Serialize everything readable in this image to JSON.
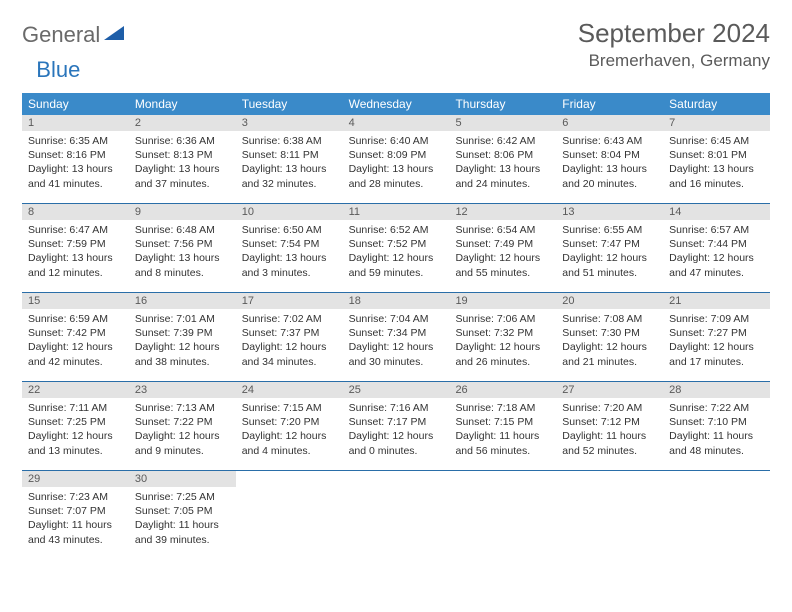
{
  "logo": {
    "general": "General",
    "blue": "Blue"
  },
  "title": "September 2024",
  "location": "Bremerhaven, Germany",
  "header_bg": "#3a8ac9",
  "daynum_bg": "#e3e3e3",
  "border_color": "#2a6ea8",
  "day_headers": [
    "Sunday",
    "Monday",
    "Tuesday",
    "Wednesday",
    "Thursday",
    "Friday",
    "Saturday"
  ],
  "weeks": [
    [
      {
        "day": "1",
        "sunrise": "Sunrise: 6:35 AM",
        "sunset": "Sunset: 8:16 PM",
        "dl1": "Daylight: 13 hours",
        "dl2": "and 41 minutes."
      },
      {
        "day": "2",
        "sunrise": "Sunrise: 6:36 AM",
        "sunset": "Sunset: 8:13 PM",
        "dl1": "Daylight: 13 hours",
        "dl2": "and 37 minutes."
      },
      {
        "day": "3",
        "sunrise": "Sunrise: 6:38 AM",
        "sunset": "Sunset: 8:11 PM",
        "dl1": "Daylight: 13 hours",
        "dl2": "and 32 minutes."
      },
      {
        "day": "4",
        "sunrise": "Sunrise: 6:40 AM",
        "sunset": "Sunset: 8:09 PM",
        "dl1": "Daylight: 13 hours",
        "dl2": "and 28 minutes."
      },
      {
        "day": "5",
        "sunrise": "Sunrise: 6:42 AM",
        "sunset": "Sunset: 8:06 PM",
        "dl1": "Daylight: 13 hours",
        "dl2": "and 24 minutes."
      },
      {
        "day": "6",
        "sunrise": "Sunrise: 6:43 AM",
        "sunset": "Sunset: 8:04 PM",
        "dl1": "Daylight: 13 hours",
        "dl2": "and 20 minutes."
      },
      {
        "day": "7",
        "sunrise": "Sunrise: 6:45 AM",
        "sunset": "Sunset: 8:01 PM",
        "dl1": "Daylight: 13 hours",
        "dl2": "and 16 minutes."
      }
    ],
    [
      {
        "day": "8",
        "sunrise": "Sunrise: 6:47 AM",
        "sunset": "Sunset: 7:59 PM",
        "dl1": "Daylight: 13 hours",
        "dl2": "and 12 minutes."
      },
      {
        "day": "9",
        "sunrise": "Sunrise: 6:48 AM",
        "sunset": "Sunset: 7:56 PM",
        "dl1": "Daylight: 13 hours",
        "dl2": "and 8 minutes."
      },
      {
        "day": "10",
        "sunrise": "Sunrise: 6:50 AM",
        "sunset": "Sunset: 7:54 PM",
        "dl1": "Daylight: 13 hours",
        "dl2": "and 3 minutes."
      },
      {
        "day": "11",
        "sunrise": "Sunrise: 6:52 AM",
        "sunset": "Sunset: 7:52 PM",
        "dl1": "Daylight: 12 hours",
        "dl2": "and 59 minutes."
      },
      {
        "day": "12",
        "sunrise": "Sunrise: 6:54 AM",
        "sunset": "Sunset: 7:49 PM",
        "dl1": "Daylight: 12 hours",
        "dl2": "and 55 minutes."
      },
      {
        "day": "13",
        "sunrise": "Sunrise: 6:55 AM",
        "sunset": "Sunset: 7:47 PM",
        "dl1": "Daylight: 12 hours",
        "dl2": "and 51 minutes."
      },
      {
        "day": "14",
        "sunrise": "Sunrise: 6:57 AM",
        "sunset": "Sunset: 7:44 PM",
        "dl1": "Daylight: 12 hours",
        "dl2": "and 47 minutes."
      }
    ],
    [
      {
        "day": "15",
        "sunrise": "Sunrise: 6:59 AM",
        "sunset": "Sunset: 7:42 PM",
        "dl1": "Daylight: 12 hours",
        "dl2": "and 42 minutes."
      },
      {
        "day": "16",
        "sunrise": "Sunrise: 7:01 AM",
        "sunset": "Sunset: 7:39 PM",
        "dl1": "Daylight: 12 hours",
        "dl2": "and 38 minutes."
      },
      {
        "day": "17",
        "sunrise": "Sunrise: 7:02 AM",
        "sunset": "Sunset: 7:37 PM",
        "dl1": "Daylight: 12 hours",
        "dl2": "and 34 minutes."
      },
      {
        "day": "18",
        "sunrise": "Sunrise: 7:04 AM",
        "sunset": "Sunset: 7:34 PM",
        "dl1": "Daylight: 12 hours",
        "dl2": "and 30 minutes."
      },
      {
        "day": "19",
        "sunrise": "Sunrise: 7:06 AM",
        "sunset": "Sunset: 7:32 PM",
        "dl1": "Daylight: 12 hours",
        "dl2": "and 26 minutes."
      },
      {
        "day": "20",
        "sunrise": "Sunrise: 7:08 AM",
        "sunset": "Sunset: 7:30 PM",
        "dl1": "Daylight: 12 hours",
        "dl2": "and 21 minutes."
      },
      {
        "day": "21",
        "sunrise": "Sunrise: 7:09 AM",
        "sunset": "Sunset: 7:27 PM",
        "dl1": "Daylight: 12 hours",
        "dl2": "and 17 minutes."
      }
    ],
    [
      {
        "day": "22",
        "sunrise": "Sunrise: 7:11 AM",
        "sunset": "Sunset: 7:25 PM",
        "dl1": "Daylight: 12 hours",
        "dl2": "and 13 minutes."
      },
      {
        "day": "23",
        "sunrise": "Sunrise: 7:13 AM",
        "sunset": "Sunset: 7:22 PM",
        "dl1": "Daylight: 12 hours",
        "dl2": "and 9 minutes."
      },
      {
        "day": "24",
        "sunrise": "Sunrise: 7:15 AM",
        "sunset": "Sunset: 7:20 PM",
        "dl1": "Daylight: 12 hours",
        "dl2": "and 4 minutes."
      },
      {
        "day": "25",
        "sunrise": "Sunrise: 7:16 AM",
        "sunset": "Sunset: 7:17 PM",
        "dl1": "Daylight: 12 hours",
        "dl2": "and 0 minutes."
      },
      {
        "day": "26",
        "sunrise": "Sunrise: 7:18 AM",
        "sunset": "Sunset: 7:15 PM",
        "dl1": "Daylight: 11 hours",
        "dl2": "and 56 minutes."
      },
      {
        "day": "27",
        "sunrise": "Sunrise: 7:20 AM",
        "sunset": "Sunset: 7:12 PM",
        "dl1": "Daylight: 11 hours",
        "dl2": "and 52 minutes."
      },
      {
        "day": "28",
        "sunrise": "Sunrise: 7:22 AM",
        "sunset": "Sunset: 7:10 PM",
        "dl1": "Daylight: 11 hours",
        "dl2": "and 48 minutes."
      }
    ],
    [
      {
        "day": "29",
        "sunrise": "Sunrise: 7:23 AM",
        "sunset": "Sunset: 7:07 PM",
        "dl1": "Daylight: 11 hours",
        "dl2": "and 43 minutes."
      },
      {
        "day": "30",
        "sunrise": "Sunrise: 7:25 AM",
        "sunset": "Sunset: 7:05 PM",
        "dl1": "Daylight: 11 hours",
        "dl2": "and 39 minutes."
      },
      {
        "empty": true
      },
      {
        "empty": true
      },
      {
        "empty": true
      },
      {
        "empty": true
      },
      {
        "empty": true
      }
    ]
  ]
}
